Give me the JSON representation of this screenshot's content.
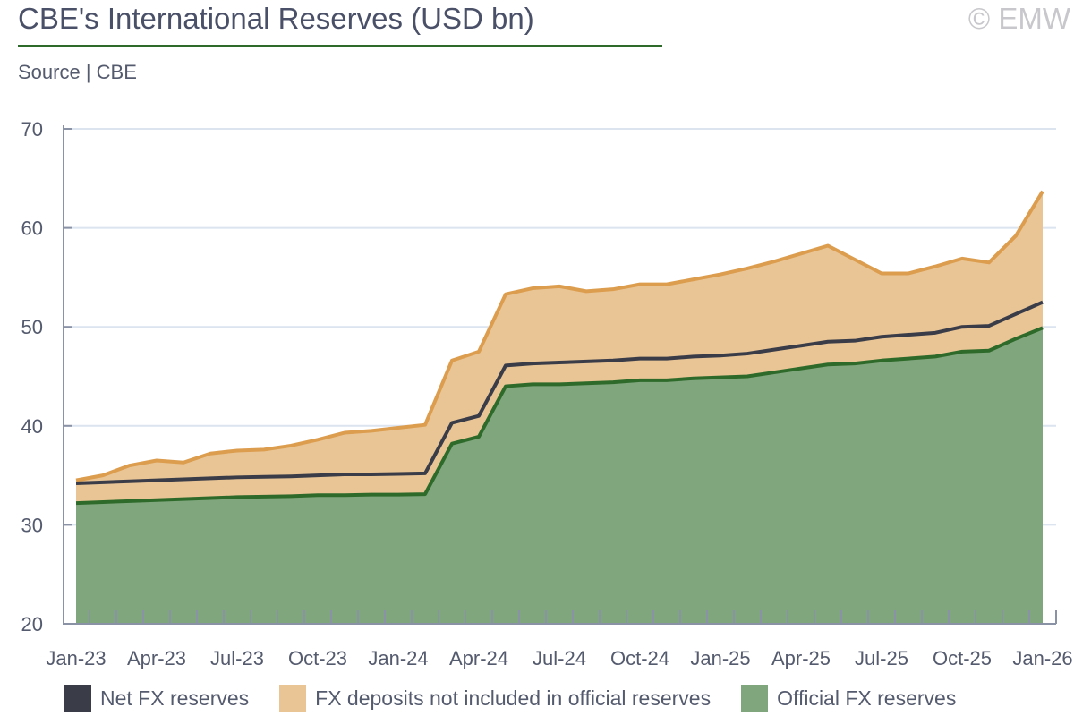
{
  "title": "CBE's International Reserves (USD bn)",
  "copyright": "© EMW",
  "source": "Source | CBE",
  "chart_data": {
    "type": "area",
    "title": "CBE's International Reserves (USD bn)",
    "xlabel": "",
    "ylabel": "",
    "ylim": [
      20,
      70
    ],
    "yticks": [
      "20",
      "30",
      "40",
      "50",
      "60",
      "70"
    ],
    "xtick_labels": [
      "Jan-23",
      "Apr-23",
      "Jul-23",
      "Oct-23",
      "Jan-24",
      "Apr-24",
      "Jul-24",
      "Oct-24",
      "Jan-25",
      "Apr-25",
      "Jul-25",
      "Oct-25",
      "Jan-26"
    ],
    "grid": true,
    "legend_position": "bottom",
    "months": 37,
    "series": [
      {
        "name": "Official FX reserves",
        "color": "#2e6b2b",
        "fill": "#80a67d",
        "values": [
          32.2,
          32.3,
          32.4,
          32.5,
          32.6,
          32.7,
          32.8,
          32.85,
          32.9,
          33.0,
          33.0,
          33.05,
          33.05,
          33.1,
          38.2,
          38.9,
          44.0,
          44.2,
          44.2,
          44.3,
          44.4,
          44.6,
          44.6,
          44.8,
          44.9,
          45.0,
          45.4,
          45.8,
          46.2,
          46.3,
          46.6,
          46.8,
          47.0,
          47.5,
          47.6,
          48.8,
          49.9
        ]
      },
      {
        "name": "Net FX reserves",
        "color": "#3a3d48",
        "values": [
          34.2,
          34.3,
          34.4,
          34.5,
          34.6,
          34.7,
          34.8,
          34.85,
          34.9,
          35.0,
          35.1,
          35.1,
          35.15,
          35.2,
          40.3,
          41.0,
          46.1,
          46.3,
          46.4,
          46.5,
          46.6,
          46.8,
          46.8,
          47.0,
          47.1,
          47.3,
          47.7,
          48.1,
          48.5,
          48.6,
          49.0,
          49.2,
          49.4,
          50.0,
          50.1,
          51.3,
          52.5
        ]
      },
      {
        "name": "FX deposits not included in official reserves",
        "color": "#dc9d4e",
        "fill": "#e9c596",
        "note": "top line = official + deposits",
        "values": [
          34.5,
          35.0,
          36.0,
          36.5,
          36.3,
          37.2,
          37.5,
          37.6,
          38.0,
          38.6,
          39.3,
          39.5,
          39.8,
          40.1,
          46.6,
          47.5,
          53.3,
          53.9,
          54.1,
          53.6,
          53.8,
          54.3,
          54.3,
          54.8,
          55.3,
          55.9,
          56.6,
          57.4,
          58.2,
          56.8,
          55.4,
          55.4,
          56.1,
          56.9,
          56.5,
          59.2,
          63.7
        ]
      }
    ]
  }
}
